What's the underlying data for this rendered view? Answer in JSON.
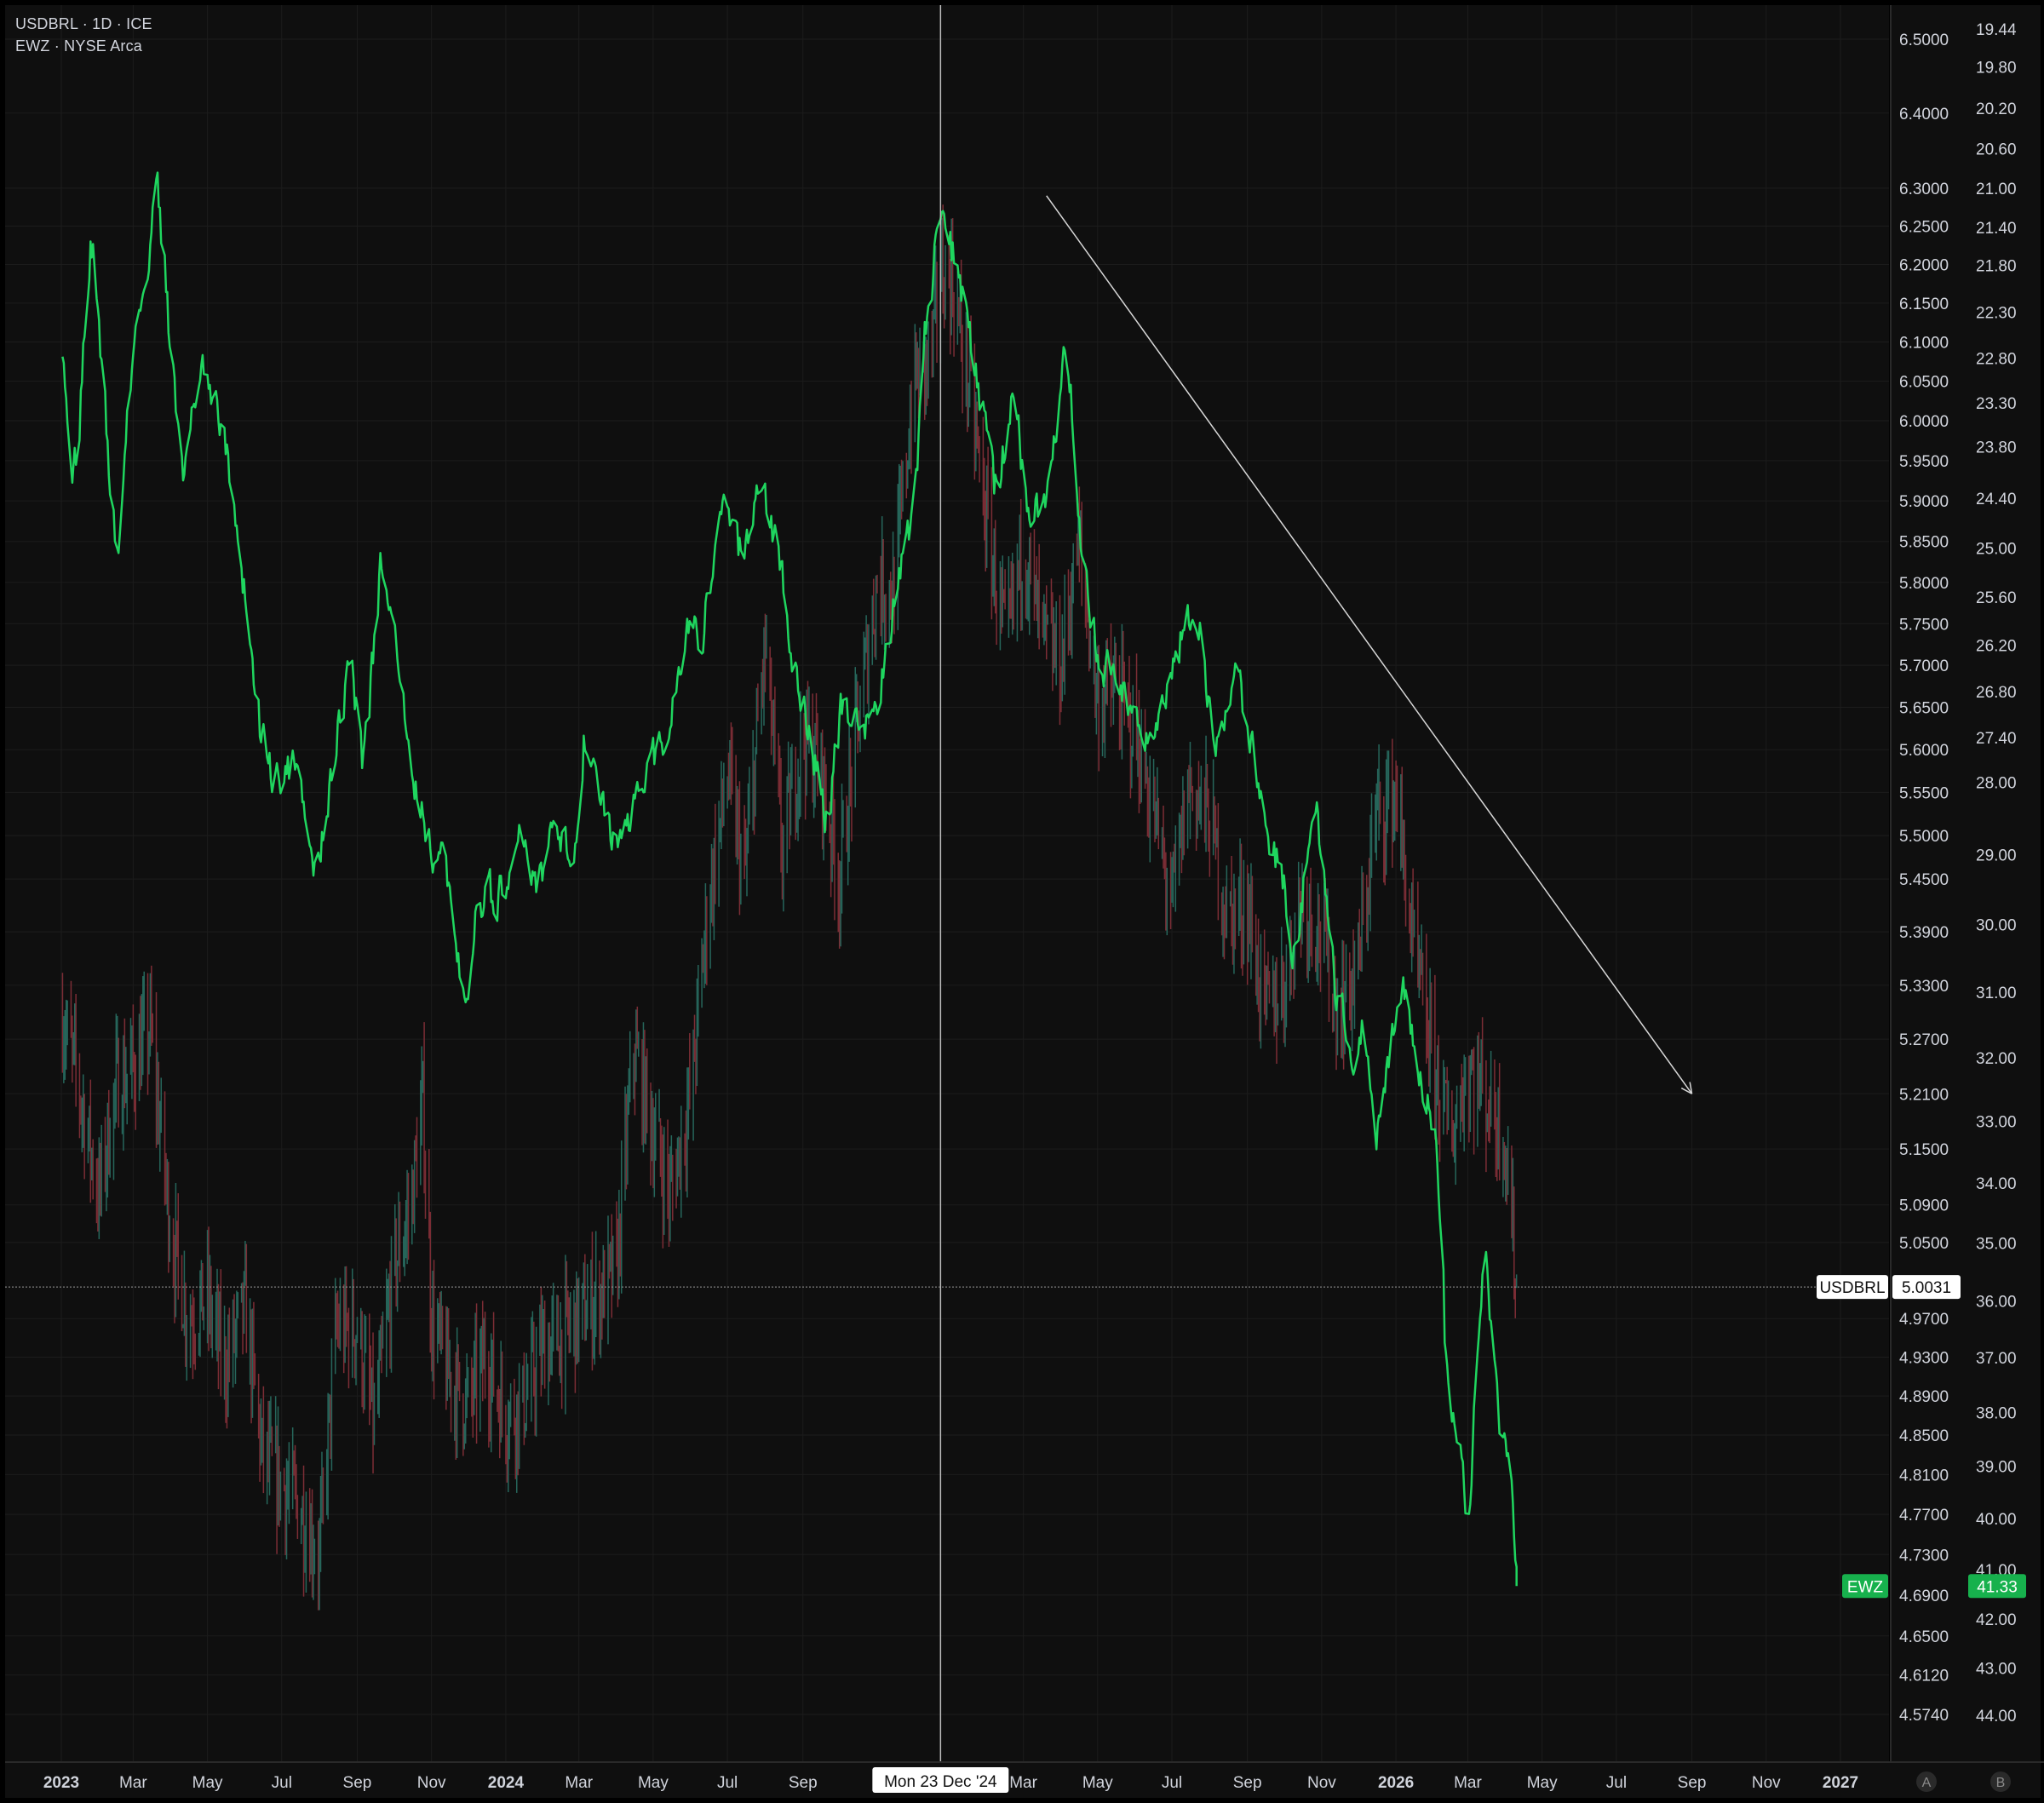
{
  "legend": {
    "usdbrl": "USDBRL · 1D · ICE",
    "ewz": "EWZ · NYSE Arca"
  },
  "colors": {
    "background": "#0f0f0f",
    "grid": "#1c1c1c",
    "ewz_line": "#1fd65f",
    "usdbrl_up": "#26665b",
    "usdbrl_down": "#7c2d35",
    "crosshair": "#bdbdbd",
    "axis_text": "#d1d4dc",
    "ewz_badge": "#17b14d"
  },
  "crosshair": {
    "label": "Mon 23 Dec '24",
    "date": "2024-12-23"
  },
  "chart_data": [
    {
      "type": "candlestick",
      "symbol": "USDBRL",
      "interval": "1D",
      "exchange": "ICE",
      "last_value": "5.0031",
      "price_axis": {
        "scale": "log",
        "range": [
          4.574,
          6.5
        ],
        "tick_labels": [
          "6.5000",
          "6.4000",
          "6.3000",
          "6.2500",
          "6.2000",
          "6.1500",
          "6.1000",
          "6.0500",
          "6.0000",
          "5.9500",
          "5.9000",
          "5.8500",
          "5.8000",
          "5.7500",
          "5.7000",
          "5.6500",
          "5.6000",
          "5.5500",
          "5.5000",
          "5.4500",
          "5.3900",
          "5.3300",
          "5.2700",
          "5.2100",
          "5.1500",
          "5.0900",
          "5.0500",
          "4.9700",
          "4.9300",
          "4.8900",
          "4.8500",
          "4.8100",
          "4.7700",
          "4.7300",
          "4.6900",
          "4.6500",
          "4.6120",
          "4.5740"
        ]
      },
      "series": [
        [
          "2023-01-01",
          5.3
        ],
        [
          "2023-01-15",
          5.22
        ],
        [
          "2023-02-01",
          5.1
        ],
        [
          "2023-02-15",
          5.22
        ],
        [
          "2023-03-01",
          5.24
        ],
        [
          "2023-03-15",
          5.28
        ],
        [
          "2023-04-01",
          5.06
        ],
        [
          "2023-04-15",
          4.97
        ],
        [
          "2023-05-01",
          4.99
        ],
        [
          "2023-05-15",
          4.92
        ],
        [
          "2023-06-01",
          4.98
        ],
        [
          "2023-06-15",
          4.83
        ],
        [
          "2023-07-01",
          4.8
        ],
        [
          "2023-07-15",
          4.78
        ],
        [
          "2023-08-01",
          4.73
        ],
        [
          "2023-08-15",
          4.96
        ],
        [
          "2023-09-01",
          4.96
        ],
        [
          "2023-09-15",
          4.86
        ],
        [
          "2023-10-01",
          5.02
        ],
        [
          "2023-10-15",
          5.09
        ],
        [
          "2023-10-25",
          5.2
        ],
        [
          "2023-11-01",
          4.97
        ],
        [
          "2023-11-15",
          4.91
        ],
        [
          "2023-12-01",
          4.88
        ],
        [
          "2023-12-15",
          4.93
        ],
        [
          "2024-01-01",
          4.87
        ],
        [
          "2024-01-15",
          4.88
        ],
        [
          "2024-02-01",
          4.94
        ],
        [
          "2024-02-15",
          4.95
        ],
        [
          "2024-03-01",
          4.97
        ],
        [
          "2024-03-15",
          4.99
        ],
        [
          "2024-04-01",
          5.02
        ],
        [
          "2024-04-15",
          5.26
        ],
        [
          "2024-05-01",
          5.17
        ],
        [
          "2024-05-15",
          5.1
        ],
        [
          "2024-06-01",
          5.21
        ],
        [
          "2024-06-15",
          5.42
        ],
        [
          "2024-07-01",
          5.57
        ],
        [
          "2024-07-15",
          5.45
        ],
        [
          "2024-08-01",
          5.72
        ],
        [
          "2024-08-15",
          5.48
        ],
        [
          "2024-09-01",
          5.62
        ],
        [
          "2024-09-15",
          5.58
        ],
        [
          "2024-10-01",
          5.45
        ],
        [
          "2024-10-15",
          5.62
        ],
        [
          "2024-11-01",
          5.8
        ],
        [
          "2024-11-15",
          5.79
        ],
        [
          "2024-12-01",
          6.05
        ],
        [
          "2024-12-15",
          6.08
        ],
        [
          "2024-12-23",
          6.19
        ],
        [
          "2025-01-01",
          6.18
        ],
        [
          "2025-01-15",
          6.05
        ],
        [
          "2025-02-01",
          5.85
        ],
        [
          "2025-02-15",
          5.72
        ],
        [
          "2025-03-01",
          5.85
        ],
        [
          "2025-03-15",
          5.74
        ],
        [
          "2025-04-01",
          5.7
        ],
        [
          "2025-04-15",
          5.85
        ],
        [
          "2025-05-01",
          5.66
        ],
        [
          "2025-05-15",
          5.67
        ],
        [
          "2025-06-01",
          5.62
        ],
        [
          "2025-06-15",
          5.53
        ],
        [
          "2025-07-01",
          5.42
        ],
        [
          "2025-07-15",
          5.56
        ],
        [
          "2025-08-01",
          5.52
        ],
        [
          "2025-08-15",
          5.41
        ],
        [
          "2025-09-01",
          5.42
        ],
        [
          "2025-09-15",
          5.3
        ],
        [
          "2025-10-01",
          5.33
        ],
        [
          "2025-10-15",
          5.43
        ],
        [
          "2025-11-01",
          5.39
        ],
        [
          "2025-11-15",
          5.3
        ],
        [
          "2025-12-01",
          5.35
        ],
        [
          "2025-12-15",
          5.52
        ],
        [
          "2026-01-01",
          5.55
        ],
        [
          "2026-01-15",
          5.37
        ],
        [
          "2026-02-01",
          5.24
        ],
        [
          "2026-02-15",
          5.16
        ],
        [
          "2026-03-01",
          5.24
        ],
        [
          "2026-03-15",
          5.21
        ],
        [
          "2026-04-01",
          5.16
        ],
        [
          "2026-04-10",
          5.0031
        ]
      ]
    },
    {
      "type": "line",
      "symbol": "EWZ",
      "exchange": "NYSE Arca",
      "last_value": "41.33",
      "price_axis": {
        "scale": "log",
        "inverted": true,
        "range": [
          19.3,
          44.5
        ],
        "tick_labels": [
          "19.44",
          "19.80",
          "20.20",
          "20.60",
          "21.00",
          "21.40",
          "21.80",
          "22.30",
          "22.80",
          "23.30",
          "23.80",
          "24.40",
          "25.00",
          "25.60",
          "26.20",
          "26.80",
          "27.40",
          "28.00",
          "29.00",
          "30.00",
          "31.00",
          "32.00",
          "33.00",
          "34.00",
          "35.00",
          "36.00",
          "37.00",
          "38.00",
          "39.00",
          "40.00",
          "41.00",
          "42.00",
          "43.00",
          "44.00"
        ]
      },
      "series": [
        [
          "2023-01-01",
          22.9
        ],
        [
          "2023-01-10",
          24.4
        ],
        [
          "2023-01-25",
          21.4
        ],
        [
          "2023-02-05",
          23.4
        ],
        [
          "2023-02-15",
          25.3
        ],
        [
          "2023-02-25",
          23.0
        ],
        [
          "2023-03-10",
          22.0
        ],
        [
          "2023-03-20",
          20.9
        ],
        [
          "2023-03-28",
          22.3
        ],
        [
          "2023-04-10",
          24.2
        ],
        [
          "2023-04-25",
          22.7
        ],
        [
          "2023-05-10",
          23.4
        ],
        [
          "2023-05-25",
          24.7
        ],
        [
          "2023-06-10",
          27.2
        ],
        [
          "2023-06-25",
          28.1
        ],
        [
          "2023-07-10",
          27.7
        ],
        [
          "2023-07-28",
          29.3
        ],
        [
          "2023-08-15",
          27.3
        ],
        [
          "2023-08-25",
          26.3
        ],
        [
          "2023-09-05",
          27.9
        ],
        [
          "2023-09-20",
          25.1
        ],
        [
          "2023-10-01",
          26.1
        ],
        [
          "2023-10-15",
          27.8
        ],
        [
          "2023-10-30",
          28.8
        ],
        [
          "2023-11-10",
          29.2
        ],
        [
          "2023-11-28",
          31.0
        ],
        [
          "2023-12-10",
          29.6
        ],
        [
          "2023-12-25",
          29.6
        ],
        [
          "2024-01-10",
          28.7
        ],
        [
          "2024-01-25",
          29.6
        ],
        [
          "2024-02-10",
          28.4
        ],
        [
          "2024-02-25",
          29.2
        ],
        [
          "2024-03-05",
          27.3
        ],
        [
          "2024-03-20",
          28.5
        ],
        [
          "2024-04-05",
          29.0
        ],
        [
          "2024-04-20",
          27.8
        ],
        [
          "2024-05-10",
          27.5
        ],
        [
          "2024-05-25",
          26.1
        ],
        [
          "2024-06-10",
          26.0
        ],
        [
          "2024-06-25",
          24.6
        ],
        [
          "2024-07-10",
          25.1
        ],
        [
          "2024-07-25",
          24.3
        ],
        [
          "2024-08-10",
          24.9
        ],
        [
          "2024-08-25",
          26.6
        ],
        [
          "2024-09-05",
          27.3
        ],
        [
          "2024-09-20",
          28.6
        ],
        [
          "2024-10-01",
          27.0
        ],
        [
          "2024-10-15",
          27.3
        ],
        [
          "2024-10-30",
          27.0
        ],
        [
          "2024-11-15",
          25.5
        ],
        [
          "2024-11-30",
          24.6
        ],
        [
          "2024-12-10",
          22.4
        ],
        [
          "2024-12-23",
          21.2
        ],
        [
          "2025-01-05",
          21.9
        ],
        [
          "2025-01-20",
          22.9
        ],
        [
          "2025-02-05",
          24.4
        ],
        [
          "2025-02-20",
          23.2
        ],
        [
          "2025-03-05",
          24.6
        ],
        [
          "2025-03-20",
          24.5
        ],
        [
          "2025-04-05",
          22.4
        ],
        [
          "2025-04-15",
          24.8
        ],
        [
          "2025-05-01",
          26.4
        ],
        [
          "2025-05-20",
          26.8
        ],
        [
          "2025-06-05",
          27.4
        ],
        [
          "2025-06-20",
          27.0
        ],
        [
          "2025-07-05",
          26.2
        ],
        [
          "2025-07-20",
          25.6
        ],
        [
          "2025-08-05",
          27.7
        ],
        [
          "2025-08-20",
          26.5
        ],
        [
          "2025-09-01",
          27.4
        ],
        [
          "2025-09-15",
          28.5
        ],
        [
          "2025-09-30",
          29.4
        ],
        [
          "2025-10-10",
          30.6
        ],
        [
          "2025-10-25",
          28.0
        ],
        [
          "2025-11-10",
          30.9
        ],
        [
          "2025-11-25",
          32.0
        ],
        [
          "2025-12-05",
          31.5
        ],
        [
          "2025-12-15",
          33.5
        ],
        [
          "2025-12-28",
          31.5
        ],
        [
          "2026-01-05",
          30.8
        ],
        [
          "2026-01-20",
          32.2
        ],
        [
          "2026-02-01",
          33.0
        ],
        [
          "2026-02-10",
          37.2
        ],
        [
          "2026-02-20",
          39.0
        ],
        [
          "2026-03-01",
          39.8
        ],
        [
          "2026-03-10",
          36.0
        ],
        [
          "2026-03-15",
          35.0
        ],
        [
          "2026-03-20",
          36.6
        ],
        [
          "2026-03-28",
          38.4
        ],
        [
          "2026-04-03",
          39.2
        ],
        [
          "2026-04-10",
          41.33
        ]
      ]
    }
  ],
  "time_axis": {
    "ticks": [
      {
        "label": "2023",
        "date": "2023-01-01",
        "bold": true
      },
      {
        "label": "Mar",
        "date": "2023-03-01"
      },
      {
        "label": "May",
        "date": "2023-05-01"
      },
      {
        "label": "Jul",
        "date": "2023-07-01"
      },
      {
        "label": "Sep",
        "date": "2023-09-01"
      },
      {
        "label": "Nov",
        "date": "2023-11-01"
      },
      {
        "label": "2024",
        "date": "2024-01-01",
        "bold": true
      },
      {
        "label": "Mar",
        "date": "2024-03-01"
      },
      {
        "label": "May",
        "date": "2024-05-01"
      },
      {
        "label": "Jul",
        "date": "2024-07-01"
      },
      {
        "label": "Sep",
        "date": "2024-09-01"
      },
      {
        "label": "Mar",
        "date": "2025-03-01"
      },
      {
        "label": "May",
        "date": "2025-05-01"
      },
      {
        "label": "Jul",
        "date": "2025-07-01"
      },
      {
        "label": "Sep",
        "date": "2025-09-01"
      },
      {
        "label": "Nov",
        "date": "2025-11-01"
      },
      {
        "label": "2026",
        "date": "2026-01-01",
        "bold": true
      },
      {
        "label": "Mar",
        "date": "2026-03-01"
      },
      {
        "label": "May",
        "date": "2026-05-01"
      },
      {
        "label": "Jul",
        "date": "2026-07-01"
      },
      {
        "label": "Sep",
        "date": "2026-09-01"
      },
      {
        "label": "Nov",
        "date": "2026-11-01"
      },
      {
        "label": "2027",
        "date": "2027-01-01",
        "bold": true
      }
    ]
  },
  "trend_line": {
    "start": {
      "date": "2025-03-20",
      "usdbrl": 6.29
    },
    "end": {
      "date": "2026-09-01",
      "usdbrl": 5.21
    }
  },
  "price_labels": {
    "usdbrl_tag": "USDBRL",
    "usdbrl_value": "5.0031",
    "ewz_tag": "EWZ",
    "ewz_value": "41.33"
  },
  "scale_buttons": {
    "left": "A",
    "right": "B"
  }
}
